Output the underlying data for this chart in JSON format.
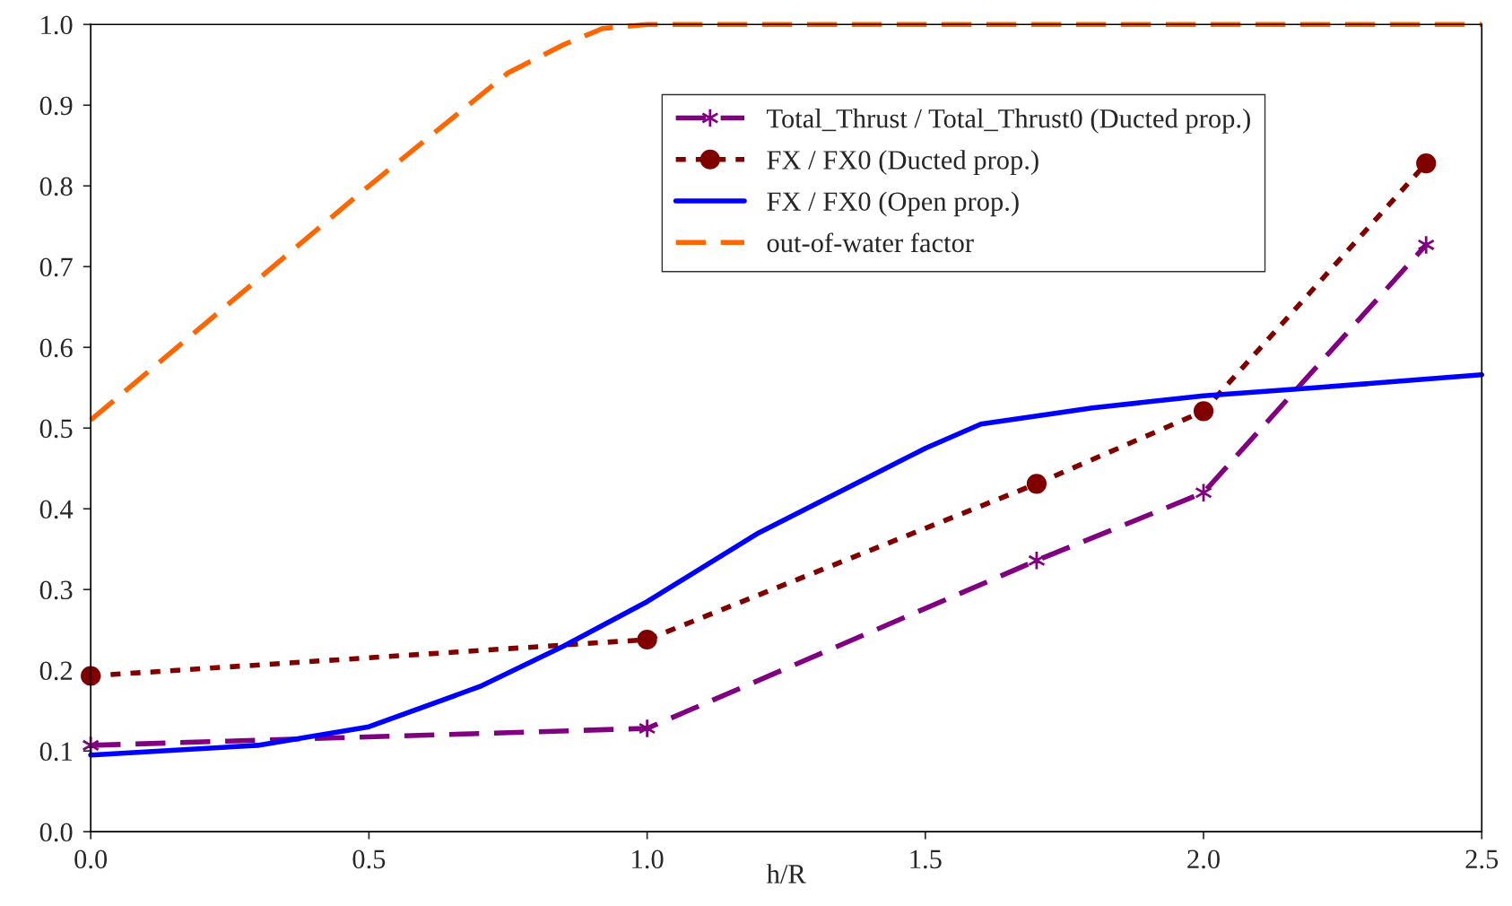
{
  "chart_data": {
    "type": "line",
    "xlabel": "h/R",
    "xlim": [
      0,
      2.5
    ],
    "ylim": [
      0,
      1
    ],
    "xticks": [
      {
        "value": 0,
        "label": "0.0"
      },
      {
        "value": 0.5,
        "label": "0.5"
      },
      {
        "value": 1,
        "label": "1.0"
      },
      {
        "value": 1.5,
        "label": "1.5"
      },
      {
        "value": 2,
        "label": "2.0"
      },
      {
        "value": 2.5,
        "label": "2.5"
      }
    ],
    "yticks": [
      {
        "value": 0,
        "label": "0.0"
      },
      {
        "value": 0.1,
        "label": "0.1"
      },
      {
        "value": 0.2,
        "label": "0.2"
      },
      {
        "value": 0.3,
        "label": "0.3"
      },
      {
        "value": 0.4,
        "label": "0.4"
      },
      {
        "value": 0.5,
        "label": "0.5"
      },
      {
        "value": 0.6,
        "label": "0.6"
      },
      {
        "value": 0.7,
        "label": "0.7"
      },
      {
        "value": 0.8,
        "label": "0.8"
      },
      {
        "value": 0.9,
        "label": "0.9"
      },
      {
        "value": 1,
        "label": "1.0"
      }
    ],
    "grid": false,
    "legend": "top right",
    "series": [
      {
        "name": "Total_Thrust / Total_Thrust0 (Ducted prop.)",
        "color": "#800080",
        "marker": "cross",
        "line_style": "dashed",
        "x": [
          0,
          1,
          1.7,
          2,
          2.4
        ],
        "values": [
          0.107,
          0.128,
          0.336,
          0.42,
          0.727
        ]
      },
      {
        "name": "FX / FX0 (Ducted prop.)",
        "color": "#800000",
        "marker": "circle",
        "line_style": "dotted",
        "x": [
          0,
          1,
          1.7,
          2,
          2.4
        ],
        "values": [
          0.193,
          0.238,
          0.431,
          0.521,
          0.828
        ]
      },
      {
        "name": "FX / FX0 (Open prop.)",
        "color": "#0000ff",
        "marker": "none",
        "line_style": "solid",
        "x": [
          0,
          0.3,
          0.5,
          0.7,
          0.85,
          1,
          1.2,
          1.4,
          1.5,
          1.6,
          1.8,
          2,
          2.2,
          2.5
        ],
        "values": [
          0.095,
          0.107,
          0.13,
          0.18,
          0.23,
          0.285,
          0.37,
          0.44,
          0.475,
          0.505,
          0.525,
          0.54,
          0.55,
          0.566
        ]
      },
      {
        "name": "out-of-water factor",
        "color": "#ff6600",
        "marker": "none",
        "line_style": "dashed",
        "x": [
          0,
          0.25,
          0.5,
          0.75,
          0.85,
          0.92,
          1,
          2.5
        ],
        "values": [
          0.51,
          0.655,
          0.8,
          0.94,
          0.975,
          0.995,
          1,
          1
        ]
      }
    ]
  }
}
